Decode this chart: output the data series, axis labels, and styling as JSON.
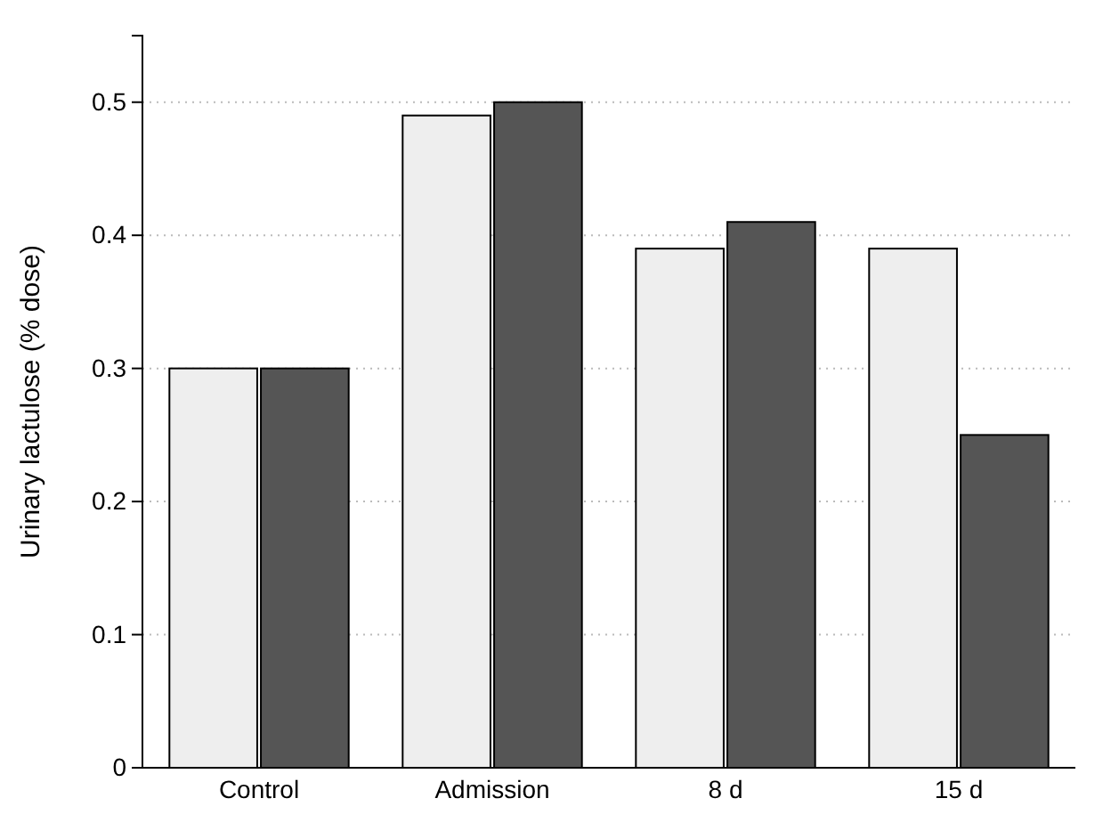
{
  "chart_data": {
    "type": "bar",
    "ylabel": "Urinary lactulose (% dose)",
    "categories": [
      "Control",
      "Admission",
      "8 d",
      "15 d"
    ],
    "series": [
      {
        "color": "#eeeeee",
        "values": [
          0.3,
          0.49,
          0.39,
          0.39
        ]
      },
      {
        "color": "#555555",
        "values": [
          0.3,
          0.5,
          0.41,
          0.25
        ]
      }
    ],
    "ylim": [
      0,
      0.55
    ],
    "yticks": [
      0,
      0.1,
      0.2,
      0.3,
      0.4,
      0.5
    ],
    "grid": "y"
  }
}
